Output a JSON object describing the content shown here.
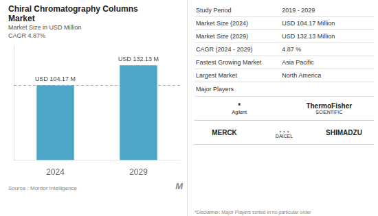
{
  "chart_data": {
    "type": "bar",
    "title": [
      "Chiral Chromatography Columns",
      "Market"
    ],
    "subtitle": [
      "Market Size in USD Million",
      "CAGR 4.87%"
    ],
    "categories": [
      "2024",
      "2029"
    ],
    "values": [
      104.17,
      132.13
    ],
    "value_labels": [
      "USD 104.17 M",
      "USD 132.13 M"
    ],
    "data_labels": true,
    "color": "#4da6c8",
    "ylim": [
      0,
      160
    ],
    "tick_labels": "x",
    "grid": false,
    "source": "Source :  Mordor Intelligence",
    "logo": "M",
    "table": [
      [
        "Study Period",
        "2019 - 2029"
      ],
      [
        "Market Size (2024)",
        "USD 104.17 Million"
      ],
      [
        "Market Size (2029)",
        "USD 132.13 Million"
      ],
      [
        "CAGR (2024 - 2029)",
        "4.87 %"
      ],
      [
        "Fastest Growing Market",
        "Asia Pacific"
      ],
      [
        "Largest Market",
        "North America"
      ]
    ],
    "players_title": "Major Players",
    "players": [
      [
        [
          "*",
          "Agilent"
        ],
        [
          "ThermoFisher",
          "SCIENTIFIC"
        ]
      ],
      [
        [
          "MERCK"
        ],
        [
          ". . .",
          "DAICEL"
        ],
        [
          "SHIMADZU"
        ]
      ]
    ],
    "disclaimer": "*Disclaimer: Major Players sorted in no particular order"
  }
}
